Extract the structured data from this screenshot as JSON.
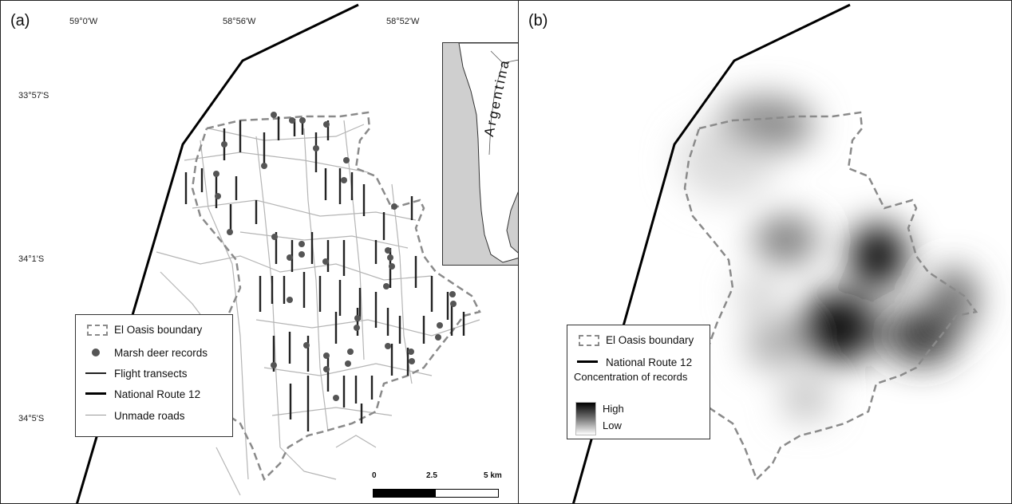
{
  "panel_a": {
    "label": "(a)",
    "longitudes": [
      "59°0'W",
      "58°56'W",
      "58°52'W"
    ],
    "latitudes": [
      "33°57'S",
      "34°1'S",
      "34°5'S"
    ],
    "legend": {
      "boundary": "El Oasis boundary",
      "records": "Marsh deer records",
      "transects": "Flight transects",
      "route": "National Route 12",
      "roads": "Unmade roads"
    },
    "inset_label": "Argentina",
    "scale": {
      "zero": "0",
      "mid": "2.5",
      "end": "5 km"
    }
  },
  "panel_b": {
    "label": "(b)",
    "legend": {
      "boundary": "El Oasis boundary",
      "route": "National Route 12",
      "density_title": "Concentration of records",
      "high": "High",
      "low": "Low"
    }
  },
  "colors": {
    "boundary": "#8a8a8a",
    "records": "#555555",
    "route": "#000000",
    "roads": "#b0b0b0",
    "land": "#ffffff",
    "sea": "#cfcfcf"
  }
}
